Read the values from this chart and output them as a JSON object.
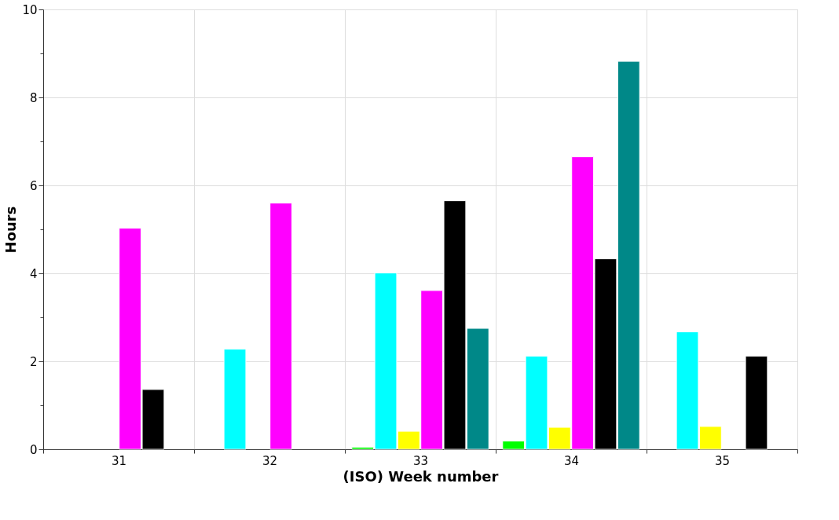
{
  "chart_data": {
    "type": "bar",
    "xlabel": "(ISO) Week number",
    "ylabel": "Hours",
    "categories": [
      "31",
      "32",
      "33",
      "34",
      "35"
    ],
    "series": [
      {
        "color": "#00ff00",
        "values": [
          null,
          null,
          0.05,
          0.19,
          null
        ]
      },
      {
        "color": "#00ffff",
        "values": [
          null,
          2.28,
          4.01,
          2.12,
          2.67
        ]
      },
      {
        "color": "#ffff00",
        "values": [
          null,
          null,
          0.41,
          0.5,
          0.52
        ]
      },
      {
        "color": "#ff00ff",
        "values": [
          5.03,
          5.6,
          3.61,
          6.65,
          null
        ]
      },
      {
        "color": "#000000",
        "values": [
          1.36,
          null,
          5.65,
          4.33,
          2.12
        ]
      },
      {
        "color": "#008888",
        "values": [
          null,
          null,
          2.75,
          8.82,
          null
        ]
      }
    ],
    "ylim": [
      0,
      10
    ],
    "yticks": [
      0,
      {
        "value": 1,
        "label": null
      },
      2,
      {
        "value": 3,
        "label": null
      },
      4,
      {
        "value": 5,
        "label": null
      },
      6,
      {
        "value": 7,
        "label": null
      },
      8,
      {
        "value": 9,
        "label": null
      },
      10
    ],
    "grid": true
  }
}
